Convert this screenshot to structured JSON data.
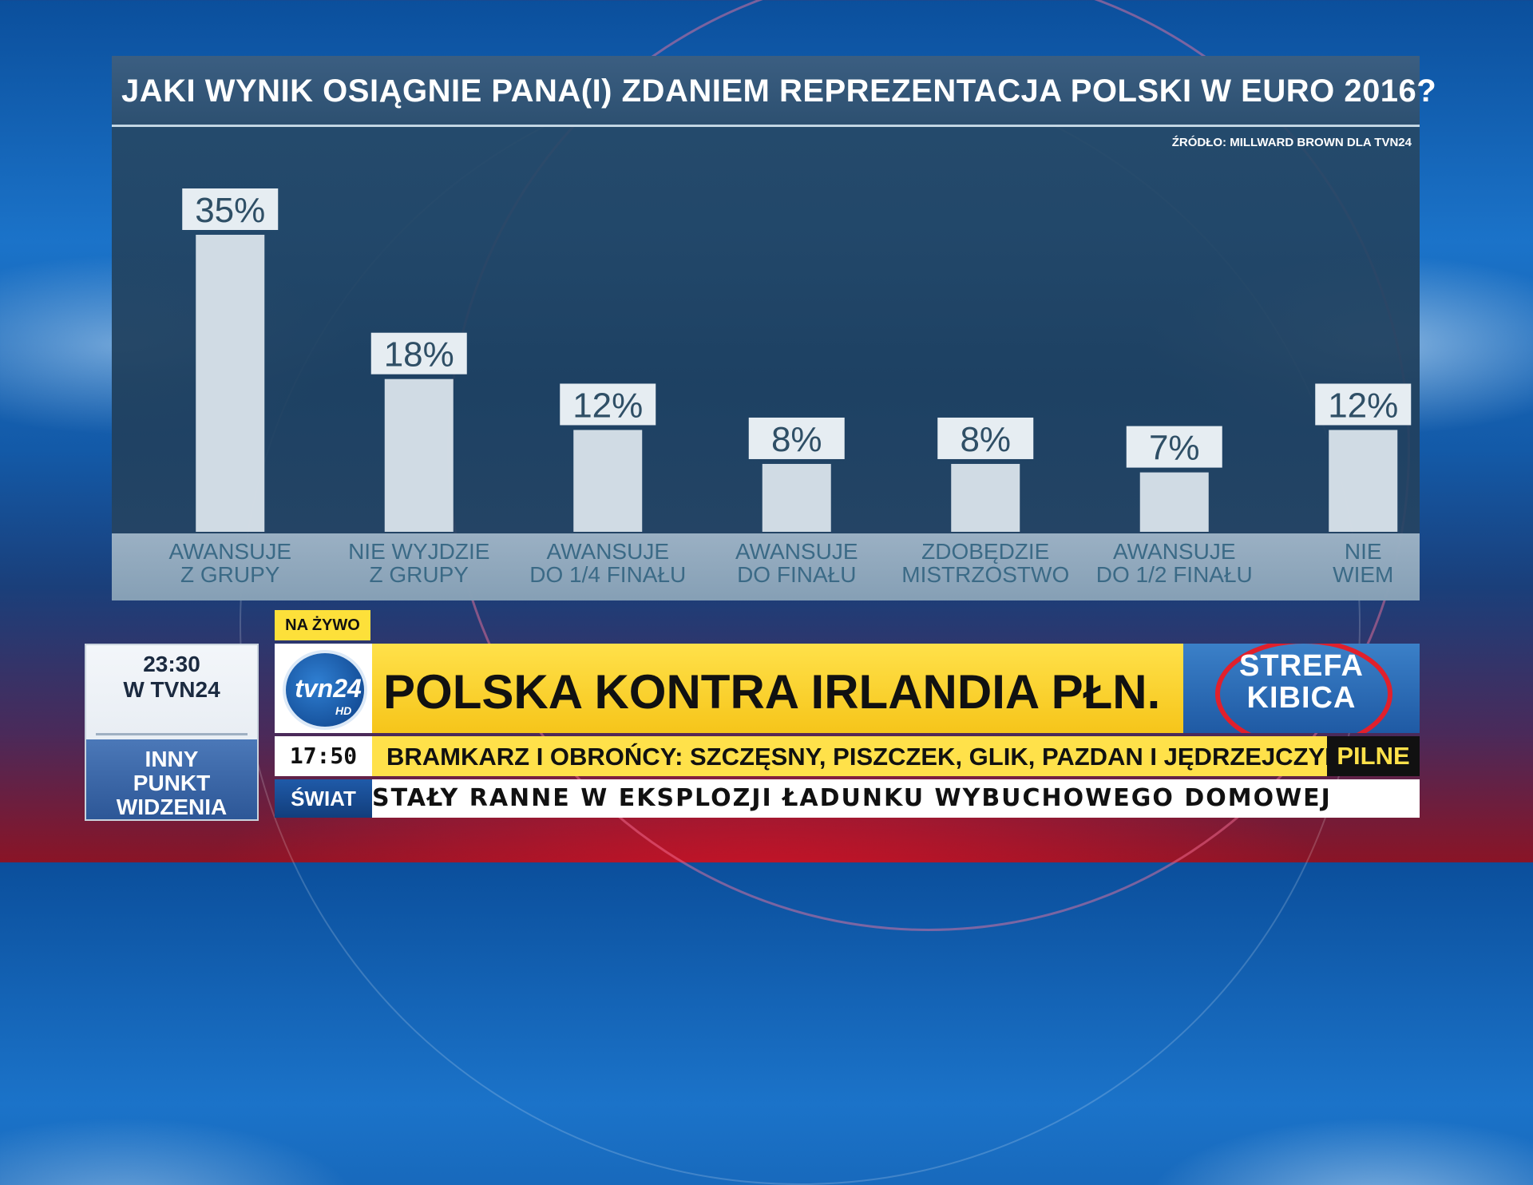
{
  "chart_data": {
    "type": "bar",
    "title": "JAKI WYNIK OSIĄGNIE PANA(I) ZDANIEM REPREZENTACJA POLSKI W EURO 2016?",
    "source": "ŹRÓDŁO: MILLWARD BROWN DLA TVN24",
    "categories": [
      "AWANSUJE\nZ GRUPY",
      "NIE WYJDZIE\nZ GRUPY",
      "AWANSUJE\nDO 1/4 FINAŁU",
      "AWANSUJE\nDO FINAŁU",
      "ZDOBĘDZIE\nMISTRZOSTWO",
      "AWANSUJE\nDO 1/2 FINAŁU",
      "NIE\nWIEM"
    ],
    "values": [
      35,
      18,
      12,
      8,
      8,
      7,
      12
    ],
    "value_labels": [
      "35%",
      "18%",
      "12%",
      "8%",
      "8%",
      "7%",
      "12%"
    ],
    "ylim": [
      0,
      35
    ],
    "grid": false,
    "legend": "none"
  },
  "promo": {
    "time": "23:30",
    "channel": "W TVN24",
    "show": "INNY\nPUNKT\nWIDZENIA"
  },
  "lower_third": {
    "live_label": "NA ŻYWO",
    "logo": {
      "text": "tvn24",
      "sub": "HD"
    },
    "headline": "POLSKA KONTRA IRLANDIA PŁN.",
    "program_logo": "STREFA\nKIBICA",
    "clock": "17:50",
    "ticker_main": "BRAMKARZ I OBROŃCY: SZCZĘSNY, PISZCZEK, GLIK, PAZDAN I JĘDRZEJCZYK",
    "ticker_tag": "PILNE",
    "category": "ŚWIAT",
    "ticker_secondary": "STAŁY RANNE W EKSPLOZJI ŁADUNKU WYBUCHOWEGO DOMOWEJ"
  },
  "colors": {
    "bar_fill": "#dfe8ef",
    "value_label_bg": "#e6edf2",
    "headline_bg": "#ffe14a",
    "program_bg": "#1f5aa4"
  }
}
